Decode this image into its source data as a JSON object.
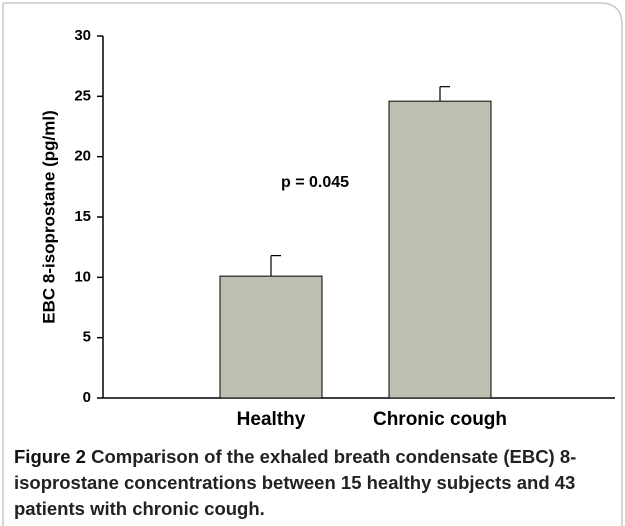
{
  "chart_data": {
    "type": "bar",
    "categories": [
      "Healthy",
      "Chronic cough"
    ],
    "values": [
      10.1,
      24.6
    ],
    "errors": [
      1.7,
      1.2
    ],
    "color": "#bfbfb1",
    "ylabel": "EBC 8-isoprostane (pg/ml)",
    "annotation": "p = 0.045",
    "ylim": [
      0,
      30
    ],
    "yticks": [
      0,
      5,
      10,
      15,
      20,
      25,
      30
    ]
  },
  "caption": {
    "label": "Figure 2",
    "text": "Comparison of the exhaled breath condensate (EBC) 8-isoprostane concentrations between 15 healthy subjects and 43 patients with chronic cough."
  }
}
